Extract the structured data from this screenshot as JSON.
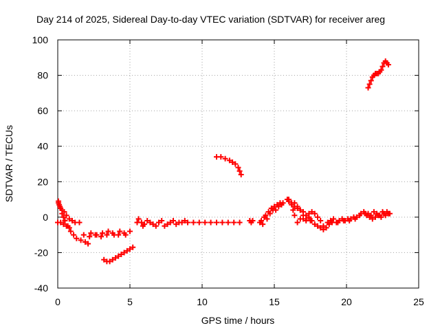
{
  "chart_data": {
    "type": "scatter",
    "title": "Day 214 of 2025, Sidereal Day-to-day VTEC variation (SDTVAR) for receiver areg",
    "xlabel": "GPS time / hours",
    "ylabel": "SDTVAR / TECUs",
    "xlim": [
      0,
      25
    ],
    "ylim": [
      -40,
      100
    ],
    "x_ticks": [
      0,
      5,
      10,
      15,
      20,
      25
    ],
    "y_ticks": [
      -40,
      -20,
      0,
      20,
      40,
      60,
      80,
      100
    ],
    "grid": true,
    "marker": "+",
    "series": [
      {
        "name": "SDTVAR",
        "color": "#ff0000",
        "points": [
          [
            0.05,
            9
          ],
          [
            0.1,
            7
          ],
          [
            0.2,
            5
          ],
          [
            0.3,
            4
          ],
          [
            0.45,
            3
          ],
          [
            0.6,
            1
          ],
          [
            0.8,
            -1
          ],
          [
            1.0,
            -2
          ],
          [
            1.2,
            -3
          ],
          [
            1.5,
            -3
          ],
          [
            0.05,
            8
          ],
          [
            0.15,
            6
          ],
          [
            0.3,
            2
          ],
          [
            0.4,
            0
          ],
          [
            0.5,
            -2
          ],
          [
            0.7,
            -5
          ],
          [
            0.9,
            -8
          ],
          [
            1.1,
            -10
          ],
          [
            1.3,
            -12
          ],
          [
            1.6,
            -13
          ],
          [
            1.9,
            -14
          ],
          [
            2.1,
            -15
          ],
          [
            0.0,
            -3
          ],
          [
            0.2,
            -3
          ],
          [
            0.4,
            -4
          ],
          [
            0.6,
            -5
          ],
          [
            0.8,
            -6
          ],
          [
            1.8,
            -10
          ],
          [
            2.2,
            -11
          ],
          [
            2.6,
            -10
          ],
          [
            3.0,
            -11
          ],
          [
            3.4,
            -10
          ],
          [
            3.8,
            -9
          ],
          [
            4.2,
            -10
          ],
          [
            4.6,
            -9
          ],
          [
            5.0,
            -8
          ],
          [
            2.3,
            -9
          ],
          [
            2.7,
            -10
          ],
          [
            3.1,
            -9
          ],
          [
            3.5,
            -8
          ],
          [
            3.9,
            -10
          ],
          [
            4.3,
            -8
          ],
          [
            4.7,
            -10
          ],
          [
            3.2,
            -24
          ],
          [
            3.4,
            -25
          ],
          [
            3.6,
            -25
          ],
          [
            3.8,
            -24
          ],
          [
            4.0,
            -23
          ],
          [
            4.2,
            -22
          ],
          [
            4.4,
            -21
          ],
          [
            4.6,
            -20
          ],
          [
            4.8,
            -19
          ],
          [
            5.0,
            -18
          ],
          [
            5.2,
            -17
          ],
          [
            5.5,
            -3
          ],
          [
            5.6,
            -1
          ],
          [
            5.8,
            -3
          ],
          [
            5.9,
            -5
          ],
          [
            6.2,
            -2
          ],
          [
            6.6,
            -4
          ],
          [
            7.0,
            -3
          ],
          [
            7.4,
            -5
          ],
          [
            7.8,
            -3
          ],
          [
            8.2,
            -4
          ],
          [
            8.6,
            -3
          ],
          [
            9.0,
            -3
          ],
          [
            6.0,
            -4
          ],
          [
            6.4,
            -3
          ],
          [
            6.8,
            -5
          ],
          [
            7.2,
            -2
          ],
          [
            7.6,
            -4
          ],
          [
            8.0,
            -2
          ],
          [
            8.4,
            -3
          ],
          [
            8.8,
            -2
          ],
          [
            9.4,
            -3
          ],
          [
            9.8,
            -3
          ],
          [
            10.2,
            -3
          ],
          [
            10.6,
            -3
          ],
          [
            11.0,
            -3
          ],
          [
            11.4,
            -3
          ],
          [
            11.8,
            -3
          ],
          [
            12.2,
            -3
          ],
          [
            12.6,
            -3
          ],
          [
            11.0,
            34
          ],
          [
            11.3,
            34
          ],
          [
            11.6,
            33
          ],
          [
            11.9,
            32
          ],
          [
            12.1,
            31
          ],
          [
            12.3,
            30
          ],
          [
            12.5,
            28
          ],
          [
            12.6,
            26
          ],
          [
            12.7,
            24
          ],
          [
            13.3,
            -2
          ],
          [
            13.4,
            -3
          ],
          [
            13.5,
            -2
          ],
          [
            14.0,
            -3
          ],
          [
            14.1,
            -2
          ],
          [
            14.3,
            0
          ],
          [
            14.4,
            1
          ],
          [
            14.6,
            3
          ],
          [
            14.8,
            5
          ],
          [
            15.0,
            6
          ],
          [
            15.2,
            7
          ],
          [
            15.4,
            8
          ],
          [
            15.6,
            8
          ],
          [
            14.2,
            -4
          ],
          [
            14.5,
            -1
          ],
          [
            14.7,
            2
          ],
          [
            14.9,
            4
          ],
          [
            15.1,
            4
          ],
          [
            15.3,
            6
          ],
          [
            15.5,
            7
          ],
          [
            15.9,
            10
          ],
          [
            16.0,
            9
          ],
          [
            16.2,
            7
          ],
          [
            16.3,
            4
          ],
          [
            16.4,
            1
          ],
          [
            16.6,
            -3
          ],
          [
            16.8,
            -1
          ],
          [
            17.0,
            -1
          ],
          [
            17.2,
            -2
          ],
          [
            17.5,
            -2
          ],
          [
            16.0,
            10
          ],
          [
            16.2,
            8
          ],
          [
            16.4,
            6
          ],
          [
            16.6,
            5
          ],
          [
            16.8,
            4
          ],
          [
            17.0,
            3
          ],
          [
            17.2,
            1
          ],
          [
            17.4,
            0
          ],
          [
            17.6,
            -2
          ],
          [
            17.8,
            -4
          ],
          [
            18.0,
            -5
          ],
          [
            18.2,
            -6
          ],
          [
            18.4,
            -7
          ],
          [
            16.4,
            8
          ],
          [
            16.6,
            6
          ],
          [
            16.8,
            4
          ],
          [
            17.0,
            1
          ],
          [
            17.2,
            -1
          ],
          [
            17.4,
            2
          ],
          [
            17.6,
            3
          ],
          [
            17.8,
            2
          ],
          [
            18.0,
            0
          ],
          [
            18.2,
            -2
          ],
          [
            18.4,
            -5
          ],
          [
            18.6,
            -6
          ],
          [
            18.7,
            -3
          ],
          [
            18.9,
            -2
          ],
          [
            19.1,
            -1
          ],
          [
            19.3,
            -3
          ],
          [
            19.5,
            -2
          ],
          [
            19.7,
            -1
          ],
          [
            19.9,
            -2
          ],
          [
            20.1,
            -1
          ],
          [
            20.3,
            -1
          ],
          [
            20.5,
            0
          ],
          [
            20.7,
            0
          ],
          [
            20.9,
            1
          ],
          [
            21.0,
            2
          ],
          [
            21.2,
            3
          ],
          [
            21.3,
            2
          ],
          [
            18.8,
            -4
          ],
          [
            19.0,
            -3
          ],
          [
            19.4,
            -3
          ],
          [
            19.8,
            -2
          ],
          [
            20.2,
            -2
          ],
          [
            20.6,
            -1
          ],
          [
            21.4,
            1
          ],
          [
            21.6,
            0
          ],
          [
            21.8,
            -1
          ],
          [
            22.0,
            0
          ],
          [
            22.2,
            1
          ],
          [
            22.4,
            0
          ],
          [
            22.6,
            2
          ],
          [
            22.8,
            3
          ],
          [
            23.0,
            2
          ],
          [
            21.5,
            2
          ],
          [
            21.7,
            1
          ],
          [
            21.9,
            3
          ],
          [
            22.1,
            2
          ],
          [
            22.3,
            1
          ],
          [
            22.5,
            3
          ],
          [
            22.7,
            1
          ],
          [
            22.9,
            2
          ],
          [
            21.5,
            73
          ],
          [
            21.6,
            75
          ],
          [
            21.7,
            77
          ],
          [
            21.8,
            79
          ],
          [
            21.9,
            80
          ],
          [
            22.0,
            81
          ],
          [
            22.1,
            81
          ],
          [
            22.2,
            81
          ],
          [
            22.3,
            82
          ],
          [
            22.4,
            83
          ],
          [
            22.5,
            85
          ],
          [
            22.6,
            87
          ],
          [
            22.7,
            88
          ],
          [
            22.8,
            87
          ],
          [
            22.9,
            86
          ]
        ]
      }
    ]
  }
}
